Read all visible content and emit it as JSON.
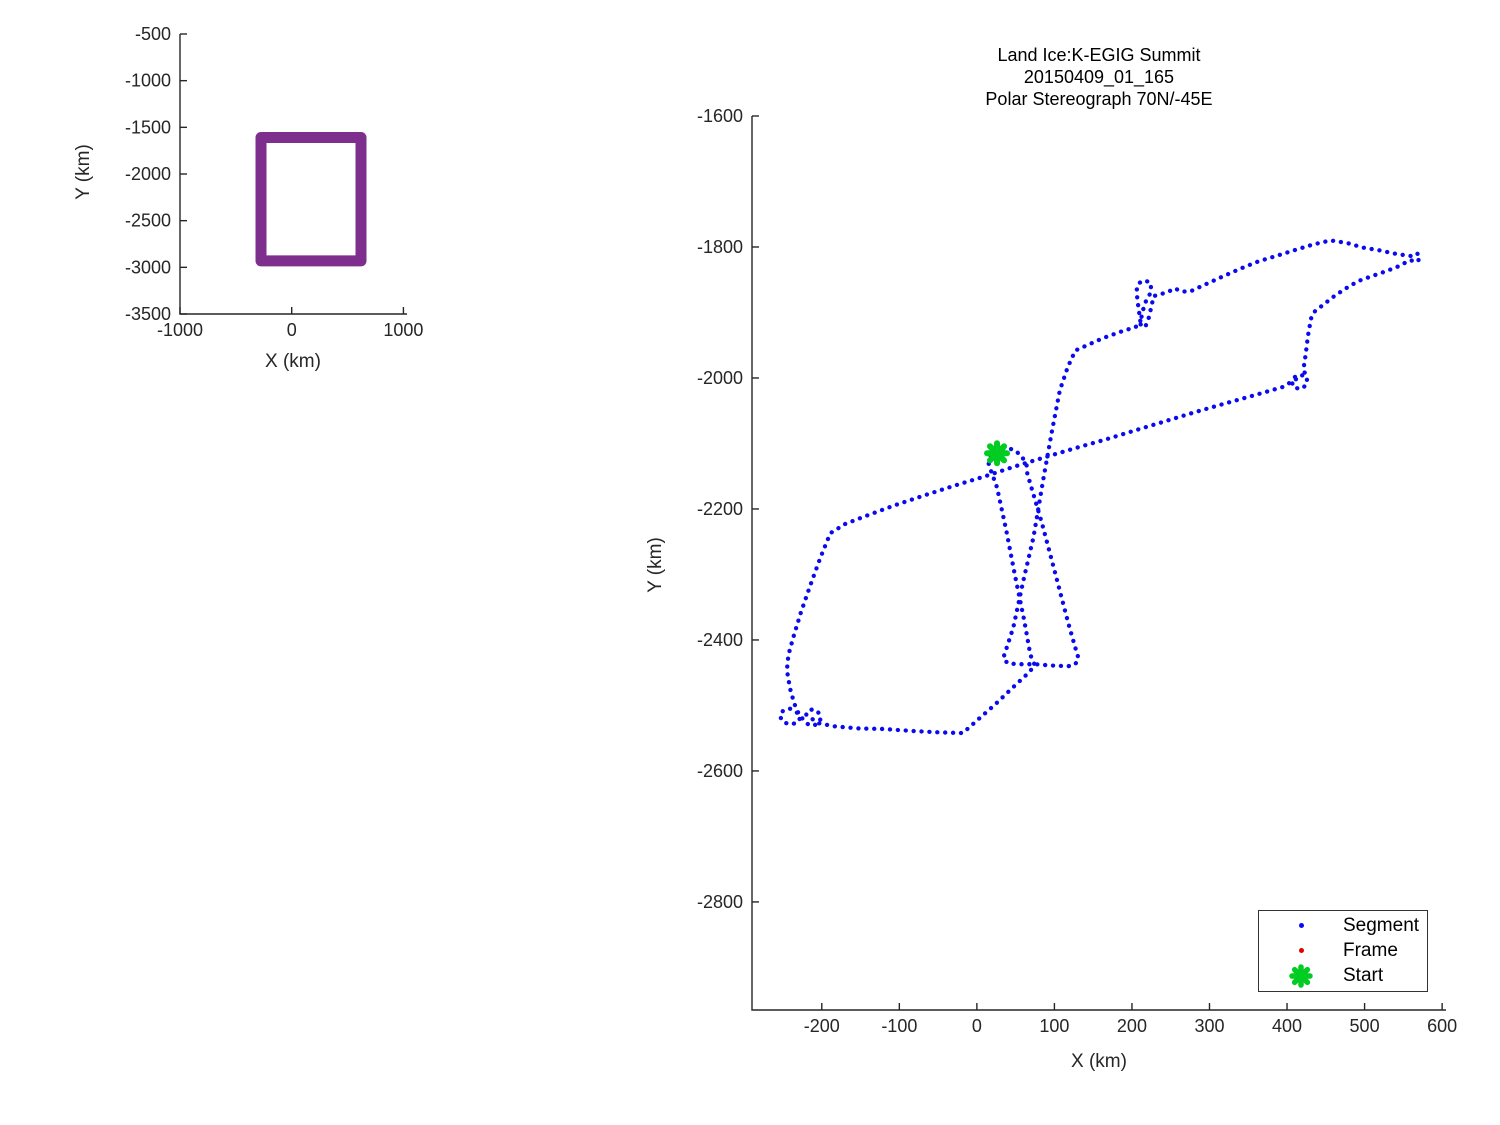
{
  "figure": {
    "background": "#ffffff"
  },
  "colors": {
    "segment_blue": "#0A0AF0",
    "frame_red": "#E00000",
    "start_green": "#00CC22",
    "outline_purple": "#7E2F8E",
    "axis_color": "#262626"
  },
  "legend": {
    "items": [
      {
        "label": "Segment",
        "marker": "dot",
        "color": "#0A0AF0"
      },
      {
        "label": "Frame",
        "marker": "dot",
        "color": "#E00000"
      },
      {
        "label": "Start",
        "marker": "asterisk",
        "color": "#00CC22"
      }
    ]
  },
  "chart_data": [
    {
      "id": "overview_map",
      "type": "line",
      "title": "",
      "xlabel": "X (km)",
      "ylabel": "Y (km)",
      "xlim": [
        -1000,
        1032
      ],
      "ylim": [
        -500,
        -3500
      ],
      "xticks": [
        -1000,
        0,
        1000
      ],
      "xtick_labels": [
        "-1000",
        "0",
        "1000"
      ],
      "yticks": [
        -500,
        -1000,
        -1500,
        -2000,
        -2500,
        -3000,
        -3500
      ],
      "ytick_labels": [
        "-500",
        "-1000",
        "-1500",
        "-2000",
        "-2500",
        "-3000",
        "-3500"
      ],
      "grid": false,
      "series": [
        {
          "name": "flight-extent-outline",
          "style": "solid",
          "line_width": 11,
          "color": "#7E2F8E",
          "closed": true,
          "points": [
            [
              -275,
              -1609
            ],
            [
              620,
              -1609
            ],
            [
              620,
              -2931
            ],
            [
              -275,
              -2931
            ]
          ]
        }
      ]
    },
    {
      "id": "flight_track",
      "type": "line",
      "title": "Land Ice:K-EGIG Summit\n20150409_01_165\nPolar Stereograph 70N/-45E",
      "title_lines": [
        "Land Ice:K-EGIG Summit",
        "20150409_01_165",
        "Polar Stereograph 70N/-45E"
      ],
      "xlabel": "X (km)",
      "ylabel": "Y (km)",
      "xlim": [
        -290,
        605
      ],
      "ylim": [
        -1600,
        -2965
      ],
      "xticks": [
        -200,
        -100,
        0,
        100,
        200,
        300,
        400,
        500,
        600
      ],
      "xtick_labels": [
        "-200",
        "-100",
        "0",
        "100",
        "200",
        "300",
        "400",
        "500",
        "600"
      ],
      "yticks": [
        -1600,
        -1800,
        -2000,
        -2200,
        -2400,
        -2600,
        -2800
      ],
      "ytick_labels": [
        "-1600",
        "-1800",
        "-2000",
        "-2200",
        "-2400",
        "-2600",
        "-2800"
      ],
      "grid": false,
      "legend_position": "lower-right",
      "start_point": [
        26,
        -2115
      ],
      "series": [
        {
          "name": "segment-path",
          "style": "dotted",
          "line_width": 4.3,
          "color": "#0A0AF0",
          "closed": false,
          "points": [
            [
              26,
              -2115
            ],
            [
              35,
              -2107
            ],
            [
              47,
              -2109
            ],
            [
              57,
              -2118
            ],
            [
              64,
              -2132
            ],
            [
              65,
              -2146
            ],
            [
              84,
              -2222
            ],
            [
              101,
              -2298
            ],
            [
              118,
              -2375
            ],
            [
              128,
              -2416
            ],
            [
              131,
              -2428
            ],
            [
              127,
              -2437
            ],
            [
              118,
              -2440
            ],
            [
              95,
              -2439
            ],
            [
              75,
              -2437
            ],
            [
              56,
              -2437
            ],
            [
              40,
              -2436
            ],
            [
              34,
              -2428
            ],
            [
              47,
              -2381
            ],
            [
              60,
              -2309
            ],
            [
              73,
              -2243
            ],
            [
              86,
              -2152
            ],
            [
              97,
              -2080
            ],
            [
              107,
              -2019
            ],
            [
              117,
              -1984
            ],
            [
              127,
              -1958
            ],
            [
              163,
              -1939
            ],
            [
              191,
              -1927
            ],
            [
              204,
              -1923
            ],
            [
              211,
              -1915
            ],
            [
              207,
              -1881
            ],
            [
              206,
              -1866
            ],
            [
              209,
              -1855
            ],
            [
              217,
              -1851
            ],
            [
              224,
              -1855
            ],
            [
              225,
              -1868
            ],
            [
              218,
              -1883
            ],
            [
              213,
              -1901
            ],
            [
              211,
              -1918
            ],
            [
              217,
              -1923
            ],
            [
              222,
              -1907
            ],
            [
              226,
              -1886
            ],
            [
              228,
              -1875
            ],
            [
              237,
              -1872
            ],
            [
              246,
              -1869
            ],
            [
              255,
              -1863
            ],
            [
              264,
              -1868
            ],
            [
              275,
              -1868
            ],
            [
              295,
              -1857
            ],
            [
              317,
              -1845
            ],
            [
              340,
              -1833
            ],
            [
              363,
              -1822
            ],
            [
              388,
              -1813
            ],
            [
              412,
              -1804
            ],
            [
              434,
              -1796
            ],
            [
              456,
              -1790
            ],
            [
              478,
              -1794
            ],
            [
              498,
              -1801
            ],
            [
              519,
              -1805
            ],
            [
              538,
              -1810
            ],
            [
              554,
              -1813
            ],
            [
              562,
              -1814
            ],
            [
              568,
              -1810
            ],
            [
              572,
              -1817
            ],
            [
              567,
              -1823
            ],
            [
              559,
              -1820
            ],
            [
              541,
              -1831
            ],
            [
              523,
              -1839
            ],
            [
              506,
              -1846
            ],
            [
              492,
              -1852
            ],
            [
              476,
              -1863
            ],
            [
              461,
              -1875
            ],
            [
              447,
              -1888
            ],
            [
              436,
              -1898
            ],
            [
              431,
              -1909
            ],
            [
              427,
              -1935
            ],
            [
              424,
              -1965
            ],
            [
              421,
              -1988
            ],
            [
              426,
              -1999
            ],
            [
              425,
              -2011
            ],
            [
              417,
              -2017
            ],
            [
              408,
              -2014
            ],
            [
              406,
              -2004
            ],
            [
              412,
              -1996
            ],
            [
              420,
              -1996
            ],
            [
              394,
              -2014
            ],
            [
              359,
              -2026
            ],
            [
              320,
              -2039
            ],
            [
              282,
              -2052
            ],
            [
              243,
              -2066
            ],
            [
              204,
              -2080
            ],
            [
              166,
              -2094
            ],
            [
              127,
              -2107
            ],
            [
              88,
              -2121
            ],
            [
              49,
              -2135
            ],
            [
              11,
              -2150
            ],
            [
              -28,
              -2164
            ],
            [
              -67,
              -2179
            ],
            [
              -105,
              -2194
            ],
            [
              -144,
              -2211
            ],
            [
              -170,
              -2223
            ],
            [
              -189,
              -2237
            ],
            [
              -202,
              -2275
            ],
            [
              -215,
              -2317
            ],
            [
              -227,
              -2358
            ],
            [
              -237,
              -2397
            ],
            [
              -243,
              -2423
            ],
            [
              -245,
              -2446
            ],
            [
              -241,
              -2474
            ],
            [
              -236,
              -2495
            ],
            [
              -232,
              -2508
            ],
            [
              -227,
              -2517
            ],
            [
              -231,
              -2526
            ],
            [
              -240,
              -2529
            ],
            [
              -249,
              -2526
            ],
            [
              -254,
              -2517
            ],
            [
              -250,
              -2508
            ],
            [
              -241,
              -2505
            ],
            [
              -232,
              -2511
            ],
            [
              -225,
              -2520
            ],
            [
              -219,
              -2528
            ],
            [
              -211,
              -2531
            ],
            [
              -203,
              -2526
            ],
            [
              -201,
              -2517
            ],
            [
              -206,
              -2508
            ],
            [
              -215,
              -2506
            ],
            [
              -220,
              -2514
            ],
            [
              -205,
              -2527
            ],
            [
              -183,
              -2532
            ],
            [
              -153,
              -2535
            ],
            [
              -120,
              -2536
            ],
            [
              -83,
              -2539
            ],
            [
              -50,
              -2541
            ],
            [
              -24,
              -2542
            ],
            [
              -18,
              -2542
            ],
            [
              2,
              -2521
            ],
            [
              24,
              -2498
            ],
            [
              46,
              -2473
            ],
            [
              65,
              -2452
            ],
            [
              75,
              -2439
            ],
            [
              69,
              -2423
            ],
            [
              61,
              -2370
            ],
            [
              49,
              -2301
            ],
            [
              38,
              -2233
            ],
            [
              26,
              -2167
            ],
            [
              18,
              -2141
            ],
            [
              15,
              -2130
            ],
            [
              17,
              -2121
            ],
            [
              21,
              -2117
            ],
            [
              26,
              -2115
            ]
          ]
        }
      ]
    }
  ]
}
